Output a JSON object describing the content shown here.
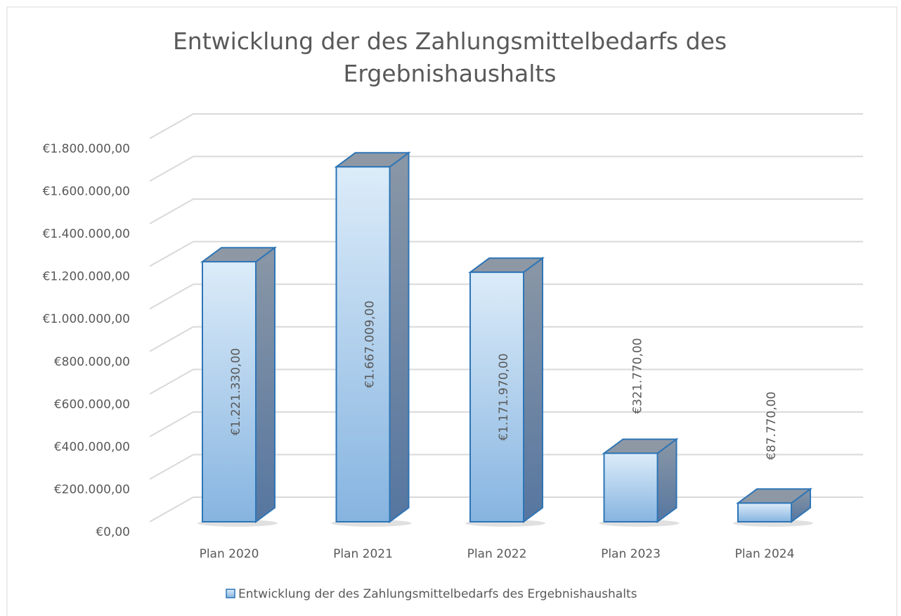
{
  "chart_data": {
    "type": "bar3d",
    "title": "Entwicklung der des Zahlungsmittelbedarfs des Ergebnishaushalts",
    "categories": [
      "Plan 2020",
      "Plan 2021",
      "Plan 2022",
      "Plan 2023",
      "Plan 2024"
    ],
    "series": [
      {
        "name": "Entwicklung der des Zahlungsmittelbedarfs des Ergebnishaushalts",
        "color": "#2e75b6",
        "values": [
          1221330,
          1667009,
          1171970,
          321770,
          87770
        ],
        "value_labels": [
          "€1.221.330,00",
          "€1.667.009,00",
          "€1.171.970,00",
          "€321.770,00",
          "€87.770,00"
        ]
      }
    ],
    "ylim": [
      0,
      1800000
    ],
    "yticks": [
      {
        "value": 0,
        "label": "€0,00"
      },
      {
        "value": 200000,
        "label": "€200.000,00"
      },
      {
        "value": 400000,
        "label": "€400.000,00"
      },
      {
        "value": 600000,
        "label": "€600.000,00"
      },
      {
        "value": 800000,
        "label": "€800.000,00"
      },
      {
        "value": 1000000,
        "label": "€1.000.000,00"
      },
      {
        "value": 1200000,
        "label": "€1.200.000,00"
      },
      {
        "value": 1400000,
        "label": "€1.400.000,00"
      },
      {
        "value": 1600000,
        "label": "€1.600.000,00"
      },
      {
        "value": 1800000,
        "label": "€1.800.000,00"
      }
    ],
    "grid": true,
    "legend": "bottom"
  }
}
